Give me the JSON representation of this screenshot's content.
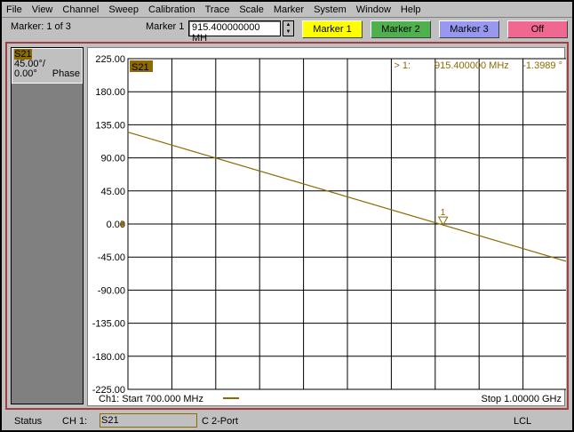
{
  "menu": [
    "File",
    "View",
    "Channel",
    "Sweep",
    "Calibration",
    "Trace",
    "Scale",
    "Marker",
    "System",
    "Window",
    "Help"
  ],
  "toolbar": {
    "marker_count": "Marker: 1 of 3",
    "marker_label": "Marker 1",
    "marker_value": "915.400000000 MH",
    "buttons": [
      {
        "label": "Marker 1",
        "color": "#ffff00"
      },
      {
        "label": "Marker 2",
        "color": "#50b050"
      },
      {
        "label": "Marker 3",
        "color": "#9898f0"
      },
      {
        "label": "Off",
        "color": "#f06890"
      }
    ]
  },
  "trace_info": {
    "name": "S21",
    "scale": "45.00°/",
    "ref": "0.00°",
    "format": "Phase"
  },
  "chart_data": {
    "type": "line",
    "trace_label": "S21",
    "trace_color": "#8c6a00",
    "y_ticks": [
      "225.00",
      "180.00",
      "135.00",
      "90.00",
      "45.00",
      "0.00",
      "-45.00",
      "-90.00",
      "-135.00",
      "-180.00",
      "-225.00"
    ],
    "ylim": [
      -225,
      225
    ],
    "xlim": [
      700,
      1000
    ],
    "x_unit": "MHz",
    "grid": true,
    "series": [
      {
        "x": [
          700,
          1000
        ],
        "y": [
          125,
          -51
        ]
      }
    ],
    "marker": {
      "number": "1",
      "x": 915.4,
      "y": -1.3989,
      "readout_prefix": "> 1:",
      "readout_freq": "915.400000 MHz",
      "readout_value": "-1.3989 °"
    },
    "start_label": "Ch1: Start  700.000 MHz",
    "stop_label": "Stop  1.00000 GHz"
  },
  "status": {
    "label": "Status",
    "channel": "CH 1:",
    "param": "S21",
    "cal": "C  2-Port",
    "mode": "LCL"
  }
}
